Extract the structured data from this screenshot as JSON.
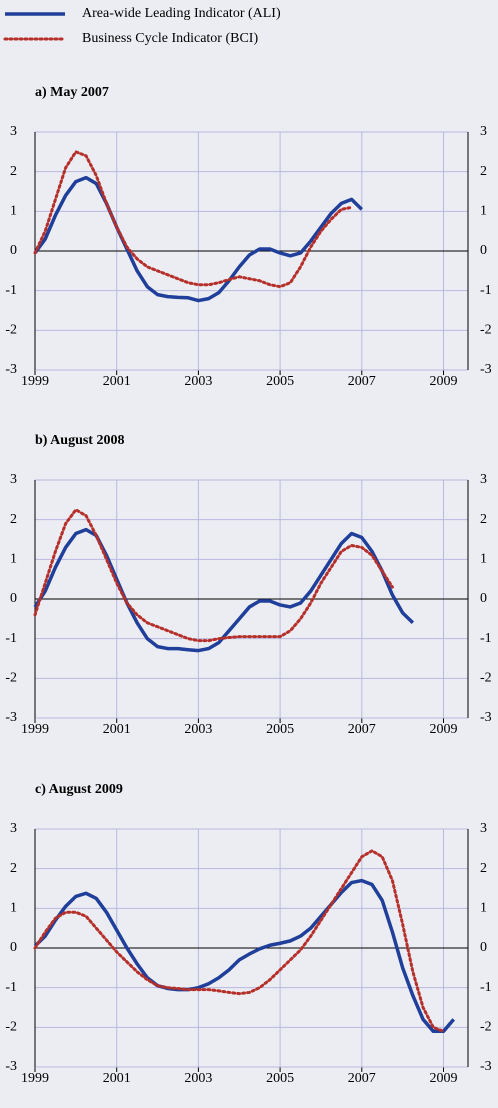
{
  "chart_data": [
    {
      "type": "line",
      "title": "a) May 2007",
      "x": [
        1999,
        1999.25,
        1999.5,
        1999.75,
        2000,
        2000.25,
        2000.5,
        2000.75,
        2001,
        2001.25,
        2001.5,
        2001.75,
        2002,
        2002.25,
        2002.5,
        2002.75,
        2003,
        2003.25,
        2003.5,
        2003.75,
        2004,
        2004.25,
        2004.5,
        2004.75,
        2005,
        2005.25,
        2005.5,
        2005.75,
        2006,
        2006.25,
        2006.5,
        2006.75,
        2007
      ],
      "xlim": [
        1999,
        2009.6
      ],
      "xticks": [
        1999,
        2001,
        2003,
        2005,
        2007,
        2009
      ],
      "ylim": [
        -3,
        3
      ],
      "yticks": [
        -3,
        -2,
        -1,
        0,
        1,
        2,
        3
      ],
      "grid": true,
      "series": [
        {
          "name": "Area-wide Leading Indicator (ALI)",
          "color": "#1f3f9a",
          "style": "solid",
          "values": [
            -0.05,
            0.3,
            0.9,
            1.4,
            1.75,
            1.85,
            1.7,
            1.2,
            0.6,
            0.05,
            -0.5,
            -0.9,
            -1.1,
            -1.15,
            -1.17,
            -1.18,
            -1.25,
            -1.2,
            -1.05,
            -0.75,
            -0.4,
            -0.1,
            0.05,
            0.05,
            -0.05,
            -0.12,
            -0.05,
            0.25,
            0.6,
            0.95,
            1.2,
            1.3,
            1.05
          ]
        },
        {
          "name": "Business Cycle Indicator (BCI)",
          "color": "#b5302a",
          "style": "dotted",
          "values": [
            -0.05,
            0.5,
            1.3,
            2.1,
            2.5,
            2.4,
            1.9,
            1.2,
            0.6,
            0.1,
            -0.2,
            -0.4,
            -0.5,
            -0.6,
            -0.7,
            -0.8,
            -0.85,
            -0.85,
            -0.8,
            -0.72,
            -0.65,
            -0.7,
            -0.75,
            -0.85,
            -0.9,
            -0.8,
            -0.4,
            0.1,
            0.5,
            0.8,
            1.05,
            1.1,
            null
          ]
        }
      ]
    },
    {
      "type": "line",
      "title": "b) August 2008",
      "x": [
        1999,
        1999.25,
        1999.5,
        1999.75,
        2000,
        2000.25,
        2000.5,
        2000.75,
        2001,
        2001.25,
        2001.5,
        2001.75,
        2002,
        2002.25,
        2002.5,
        2002.75,
        2003,
        2003.25,
        2003.5,
        2003.75,
        2004,
        2004.25,
        2004.5,
        2004.75,
        2005,
        2005.25,
        2005.5,
        2005.75,
        2006,
        2006.25,
        2006.5,
        2006.75,
        2007,
        2007.25,
        2007.5,
        2007.75,
        2008,
        2008.25
      ],
      "xlim": [
        1999,
        2009.6
      ],
      "xticks": [
        1999,
        2001,
        2003,
        2005,
        2007,
        2009
      ],
      "ylim": [
        -3,
        3
      ],
      "yticks": [
        -3,
        -2,
        -1,
        0,
        1,
        2,
        3
      ],
      "grid": true,
      "series": [
        {
          "name": "Area-wide Leading Indicator (ALI)",
          "color": "#1f3f9a",
          "style": "solid",
          "values": [
            -0.2,
            0.2,
            0.8,
            1.3,
            1.65,
            1.75,
            1.6,
            1.1,
            0.5,
            -0.1,
            -0.6,
            -1.0,
            -1.2,
            -1.25,
            -1.25,
            -1.28,
            -1.3,
            -1.25,
            -1.1,
            -0.8,
            -0.5,
            -0.2,
            -0.05,
            -0.05,
            -0.15,
            -0.2,
            -0.1,
            0.2,
            0.6,
            1.0,
            1.4,
            1.65,
            1.55,
            1.2,
            0.7,
            0.1,
            -0.35,
            -0.6
          ]
        },
        {
          "name": "Business Cycle Indicator (BCI)",
          "color": "#b5302a",
          "style": "dotted",
          "values": [
            -0.4,
            0.4,
            1.2,
            1.9,
            2.25,
            2.1,
            1.6,
            1.0,
            0.4,
            -0.1,
            -0.4,
            -0.6,
            -0.7,
            -0.8,
            -0.9,
            -1.0,
            -1.05,
            -1.05,
            -1.0,
            -0.97,
            -0.95,
            -0.95,
            -0.95,
            -0.95,
            -0.95,
            -0.8,
            -0.5,
            -0.1,
            0.4,
            0.8,
            1.2,
            1.35,
            1.3,
            1.1,
            0.7,
            0.3,
            null,
            null
          ]
        }
      ]
    },
    {
      "type": "line",
      "title": "c) August 2009",
      "x": [
        1999,
        1999.25,
        1999.5,
        1999.75,
        2000,
        2000.25,
        2000.5,
        2000.75,
        2001,
        2001.25,
        2001.5,
        2001.75,
        2002,
        2002.25,
        2002.5,
        2002.75,
        2003,
        2003.25,
        2003.5,
        2003.75,
        2004,
        2004.25,
        2004.5,
        2004.75,
        2005,
        2005.25,
        2005.5,
        2005.75,
        2006,
        2006.25,
        2006.5,
        2006.75,
        2007,
        2007.25,
        2007.5,
        2007.75,
        2008,
        2008.25,
        2008.5,
        2008.75,
        2009,
        2009.25,
        2009.5
      ],
      "xlim": [
        1999,
        2009.6
      ],
      "xticks": [
        1999,
        2001,
        2003,
        2005,
        2007,
        2009
      ],
      "ylim": [
        -3,
        3
      ],
      "yticks": [
        -3,
        -2,
        -1,
        0,
        1,
        2,
        3
      ],
      "grid": true,
      "series": [
        {
          "name": "Area-wide Leading Indicator (ALI)",
          "color": "#1f3f9a",
          "style": "solid",
          "values": [
            0.05,
            0.3,
            0.7,
            1.05,
            1.3,
            1.38,
            1.25,
            0.9,
            0.45,
            0.0,
            -0.4,
            -0.75,
            -0.95,
            -1.02,
            -1.05,
            -1.05,
            -1.0,
            -0.9,
            -0.75,
            -0.55,
            -0.3,
            -0.15,
            -0.02,
            0.07,
            0.12,
            0.18,
            0.3,
            0.5,
            0.8,
            1.1,
            1.4,
            1.65,
            1.7,
            1.6,
            1.2,
            0.4,
            -0.5,
            -1.2,
            -1.8,
            -2.1,
            -2.1,
            -1.8,
            null
          ]
        },
        {
          "name": "Business Cycle Indicator (BCI)",
          "color": "#b5302a",
          "style": "dotted",
          "values": [
            0.0,
            0.4,
            0.75,
            0.9,
            0.9,
            0.8,
            0.5,
            0.2,
            -0.1,
            -0.35,
            -0.6,
            -0.8,
            -0.95,
            -1.0,
            -1.02,
            -1.05,
            -1.05,
            -1.05,
            -1.08,
            -1.12,
            -1.15,
            -1.12,
            -1.0,
            -0.8,
            -0.55,
            -0.3,
            -0.05,
            0.3,
            0.7,
            1.1,
            1.5,
            1.9,
            2.3,
            2.45,
            2.3,
            1.7,
            0.6,
            -0.6,
            -1.5,
            -2.0,
            -2.1,
            null,
            null
          ]
        }
      ]
    }
  ]
}
